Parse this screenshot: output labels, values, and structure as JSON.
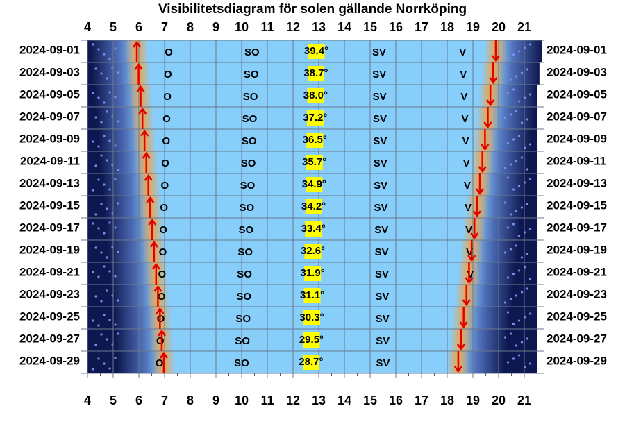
{
  "chart_data": {
    "type": "sun-visibility",
    "title": "Visibilitetsdiagram för solen gällande Norrköping",
    "xlim": [
      4,
      21.5
    ],
    "xticks": [
      4,
      5,
      6,
      7,
      8,
      9,
      10,
      11,
      12,
      13,
      14,
      15,
      16,
      17,
      18,
      19,
      20,
      21
    ],
    "categories": [
      "2024-09-01",
      "2024-09-03",
      "2024-09-05",
      "2024-09-07",
      "2024-09-09",
      "2024-09-11",
      "2024-09-13",
      "2024-09-15",
      "2024-09-17",
      "2024-09-19",
      "2024-09-21",
      "2024-09-23",
      "2024-09-25",
      "2024-09-27",
      "2024-09-29"
    ],
    "sunrise": [
      5.92,
      5.99,
      6.07,
      6.14,
      6.22,
      6.29,
      6.37,
      6.44,
      6.52,
      6.59,
      6.67,
      6.74,
      6.82,
      6.89,
      6.97
    ],
    "sunset": [
      19.89,
      19.79,
      19.68,
      19.58,
      19.47,
      19.37,
      19.27,
      19.16,
      19.06,
      18.95,
      18.85,
      18.75,
      18.64,
      18.54,
      18.43
    ],
    "elevation": {
      "values": [
        39.4,
        38.7,
        38.0,
        37.2,
        36.5,
        35.7,
        34.9,
        34.2,
        33.4,
        32.6,
        31.9,
        31.1,
        30.3,
        29.5,
        28.7
      ],
      "value_labels": [
        "39.4°",
        "38.7°",
        "38.0°",
        "37.2°",
        "36.5°",
        "35.7°",
        "34.9°",
        "34.2°",
        "33.4°",
        "32.6°",
        "31.9°",
        "31.1°",
        "30.3°",
        "29.5°",
        "28.7°"
      ]
    },
    "directions": [
      {
        "name": "O",
        "x": [
          7.16,
          7.13,
          7.11,
          7.08,
          7.06,
          7.03,
          7.01,
          6.98,
          6.95,
          6.93,
          6.9,
          6.88,
          6.85,
          6.83,
          6.8
        ]
      },
      {
        "name": "SO",
        "x": [
          10.4,
          10.37,
          10.34,
          10.31,
          10.29,
          10.26,
          10.23,
          10.2,
          10.17,
          10.14,
          10.11,
          10.09,
          10.06,
          10.03,
          10.0
        ]
      },
      {
        "name": "SV",
        "x": [
          15.35,
          15.36,
          15.37,
          15.38,
          15.39,
          15.4,
          15.41,
          15.42,
          15.44,
          15.45,
          15.46,
          15.47,
          15.48,
          15.49,
          15.5
        ]
      },
      {
        "name": "V",
        "x": [
          18.6,
          18.63,
          18.66,
          18.69,
          18.72,
          18.75,
          18.78,
          18.81,
          18.84,
          18.87,
          18.9,
          null,
          null,
          null,
          null
        ]
      }
    ]
  }
}
